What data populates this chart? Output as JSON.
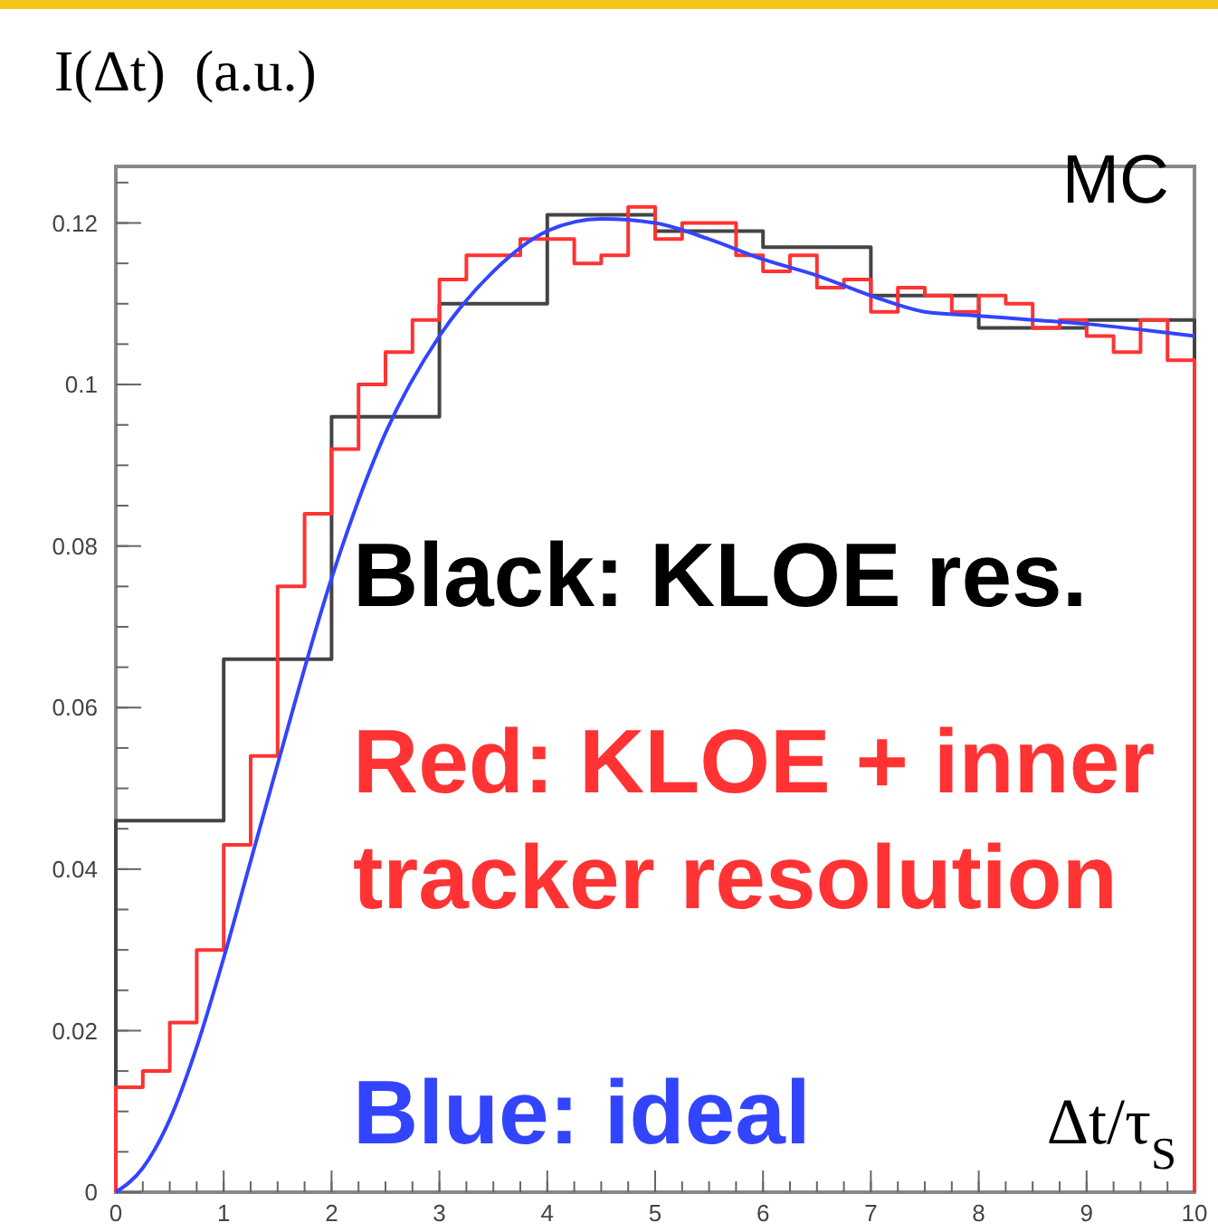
{
  "chart_data": {
    "type": "histogram",
    "ylabel": "I(Δt)  (a.u.)",
    "xlabel": "Δt/τ$_{S}$",
    "annotations": [
      "MC"
    ],
    "xlim": [
      0,
      10
    ],
    "ylim": [
      0,
      0.127
    ],
    "xticks": [
      0,
      1,
      2,
      3,
      4,
      5,
      6,
      7,
      8,
      9,
      10
    ],
    "yticks": [
      0,
      0.02,
      0.04,
      0.06,
      0.08,
      0.1,
      0.12
    ],
    "legend": "right",
    "grid": false,
    "series": [
      {
        "type": "histogram",
        "name": "Black: KLOE res.",
        "color": "#444444",
        "bins": [
          0,
          1,
          2,
          3,
          4,
          5,
          6,
          7,
          8,
          9,
          10
        ],
        "values": [
          0.046,
          0.066,
          0.096,
          0.11,
          0.121,
          0.119,
          0.117,
          0.111,
          0.107,
          0.108
        ]
      },
      {
        "type": "histogram",
        "name": "Red: KLOE + inner tracker resolution",
        "color": "#ff3333",
        "bins": [
          0,
          0.25,
          0.5,
          0.75,
          1,
          1.25,
          1.5,
          1.75,
          2,
          2.25,
          2.5,
          2.75,
          3,
          3.25,
          3.5,
          3.75,
          4,
          4.25,
          4.5,
          4.75,
          5,
          5.25,
          5.5,
          5.75,
          6,
          6.25,
          6.5,
          6.75,
          7,
          7.25,
          7.5,
          7.75,
          8,
          8.25,
          8.5,
          8.75,
          9,
          9.25,
          9.5,
          9.75,
          10
        ],
        "values": [
          0.013,
          0.015,
          0.021,
          0.03,
          0.043,
          0.054,
          0.075,
          0.084,
          0.092,
          0.1,
          0.104,
          0.108,
          0.113,
          0.116,
          0.116,
          0.118,
          0.118,
          0.115,
          0.116,
          0.122,
          0.118,
          0.12,
          0.12,
          0.116,
          0.114,
          0.116,
          0.112,
          0.113,
          0.109,
          0.112,
          0.111,
          0.109,
          0.111,
          0.11,
          0.107,
          0.108,
          0.106,
          0.104,
          0.108,
          0.103
        ]
      },
      {
        "type": "line",
        "name": "Blue: ideal",
        "color": "#3344ff",
        "x": [
          0,
          0.25,
          0.5,
          0.75,
          1,
          1.25,
          1.5,
          2,
          2.5,
          3,
          3.5,
          4,
          4.5,
          5,
          5.5,
          6,
          6.5,
          7,
          7.5,
          8,
          8.5,
          9,
          9.5,
          10
        ],
        "values": [
          0,
          0.003,
          0.009,
          0.018,
          0.029,
          0.041,
          0.053,
          0.076,
          0.094,
          0.106,
          0.114,
          0.119,
          0.1205,
          0.12,
          0.118,
          0.1155,
          0.1135,
          0.111,
          0.109,
          0.1085,
          0.108,
          0.1075,
          0.1068,
          0.106
        ]
      }
    ]
  }
}
